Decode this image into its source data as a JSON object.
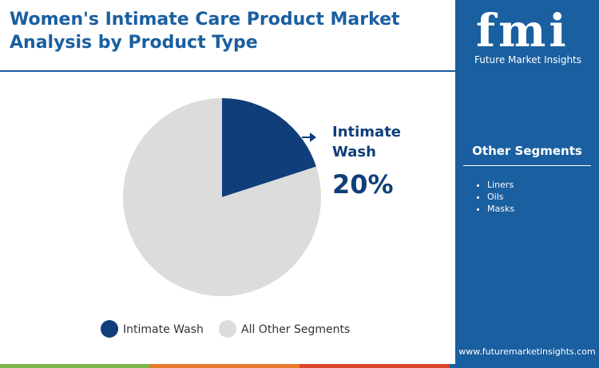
{
  "header": {
    "title": "Women's Intimate Care Product Market Analysis by Product Type"
  },
  "chart_data": {
    "type": "pie",
    "categories": [
      "Intimate Wash",
      "All Other Segments"
    ],
    "values": [
      20,
      80
    ],
    "value_labels": [
      "20%",
      null
    ],
    "colors": [
      "#0f3e7a",
      "#dcdcdc"
    ],
    "legend": "bottom"
  },
  "sidebar": {
    "logo": "fmi",
    "brand": "Future Market Insights",
    "heading": "Other Segments",
    "items": [
      "Liners",
      "Oils",
      "Masks"
    ],
    "website": "www.futuremarketinsights.com"
  }
}
